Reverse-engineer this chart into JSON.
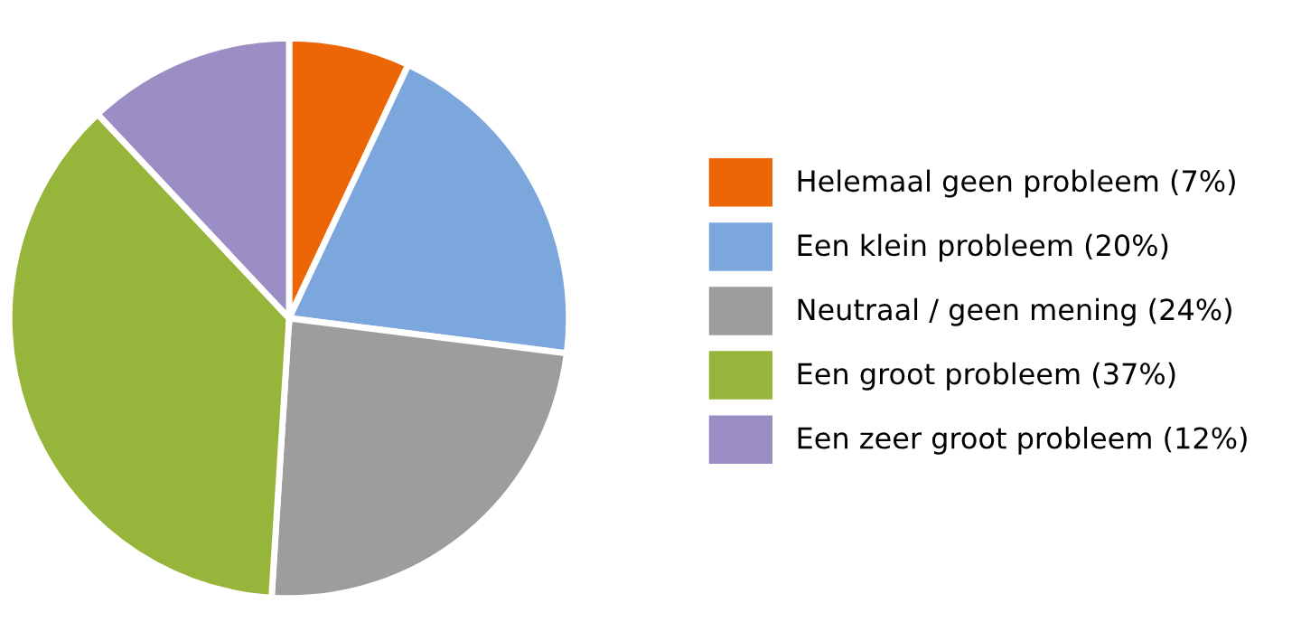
{
  "chart_data": {
    "type": "pie",
    "categories": [
      "Helemaal geen probleem (7%)",
      "Een klein probleem (20%)",
      "Neutraal / geen mening (24%)",
      "Een groot probleem (37%)",
      "Een zeer groot probleem (12%)"
    ],
    "values": [
      7,
      20,
      24,
      37,
      12
    ],
    "colors": [
      "#ec6608",
      "#7ba7dc",
      "#9d9d9d",
      "#97b53b",
      "#9b8ec4"
    ],
    "legend": "right"
  }
}
